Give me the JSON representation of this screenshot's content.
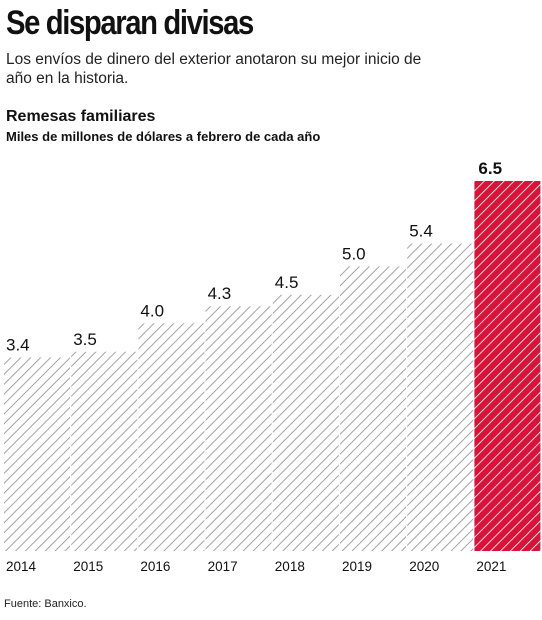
{
  "header": {
    "title": "Se disparan divisas",
    "subtitle": "Los envíos de dinero del exterior anotaron su mejor inicio de año en la historia."
  },
  "chart_head": {
    "title": "Remesas familiares",
    "subtitle": "Miles de millones de dólares a febrero de cada año"
  },
  "footer": {
    "source": "Fuente: Banxico."
  },
  "colors": {
    "hatch_gray": "#9a9a9a",
    "highlight": "#d8133a",
    "text": "#111111"
  },
  "chart_data": {
    "type": "bar",
    "title": "Remesas familiares",
    "subtitle": "Miles de millones de dólares a febrero de cada año",
    "categories": [
      "2014",
      "2015",
      "2016",
      "2017",
      "2018",
      "2019",
      "2020",
      "2021"
    ],
    "values": [
      3.4,
      3.5,
      4.0,
      4.3,
      4.5,
      5.0,
      5.4,
      6.5
    ],
    "value_labels": [
      "3.4",
      "3.5",
      "4.0",
      "4.3",
      "4.5",
      "5.0",
      "5.4",
      "6.5"
    ],
    "highlight_index": 7,
    "ylim": [
      0,
      6.5
    ],
    "grid": false,
    "legend": "none"
  }
}
